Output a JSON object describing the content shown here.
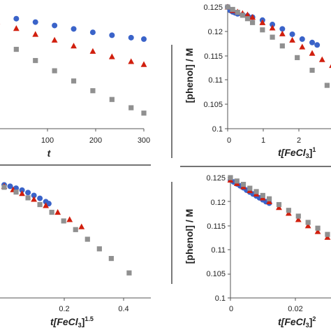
{
  "chart_data": [
    {
      "type": "scatter",
      "panel": "top-left",
      "xlabel": "t",
      "xlim": [
        0,
        300
      ],
      "ylim": [
        0.1,
        0.125
      ],
      "x_ticks": [
        "100",
        "200",
        "300"
      ],
      "series": [
        {
          "color": "#3a63c9",
          "marker": "circle",
          "x": [
            0,
            5,
            10,
            15,
            20,
            25,
            30,
            40,
            50,
            70,
            100,
            130,
            160,
            190,
            220,
            250,
            280,
            300
          ],
          "y": [
            0.125,
            0.1249,
            0.1248,
            0.1247,
            0.1246,
            0.1245,
            0.1244,
            0.1241,
            0.1238,
            0.1233,
            0.1226,
            0.1219,
            0.1212,
            0.1205,
            0.1198,
            0.1192,
            0.1187,
            0.1184
          ]
        },
        {
          "color": "#d11f0e",
          "marker": "triangle",
          "x": [
            0,
            5,
            10,
            15,
            20,
            30,
            50,
            70,
            100,
            130,
            160,
            190,
            220,
            250,
            280,
            300
          ],
          "y": [
            0.125,
            0.1248,
            0.1246,
            0.1244,
            0.1242,
            0.1238,
            0.1229,
            0.122,
            0.1206,
            0.1194,
            0.1182,
            0.117,
            0.1159,
            0.1148,
            0.1138,
            0.1132
          ]
        },
        {
          "color": "#909090",
          "marker": "square",
          "x": [
            0,
            5,
            10,
            15,
            20,
            30,
            50,
            70,
            100,
            130,
            160,
            190,
            220,
            250,
            280,
            300
          ],
          "y": [
            0.125,
            0.1245,
            0.124,
            0.1235,
            0.123,
            0.1221,
            0.1204,
            0.1187,
            0.1163,
            0.114,
            0.1119,
            0.1098,
            0.1078,
            0.106,
            0.1043,
            0.1032
          ]
        }
      ]
    },
    {
      "type": "scatter",
      "panel": "top-right",
      "ylabel": "[phenol] / M",
      "xlabel_main": "t[FeCl",
      "xlabel_sub": "3",
      "xlabel_close": "]",
      "xlabel_sup": "1",
      "xlim": [
        0,
        2.5
      ],
      "ylim": [
        0.1,
        0.125
      ],
      "y_ticks": [
        "0.125",
        "0.12",
        "0.115",
        "0.11",
        "0.105",
        "0.1"
      ],
      "x_ticks": [
        "0",
        "1",
        "2"
      ],
      "series": [
        {
          "color": "#3a63c9",
          "marker": "circle",
          "x": [
            0,
            0.05,
            0.1,
            0.15,
            0.2,
            0.3,
            0.4,
            0.5,
            0.7,
            0.9,
            1.1,
            1.3,
            1.5,
            1.7,
            1.8
          ],
          "y": [
            0.125,
            0.1243,
            0.124,
            0.1238,
            0.1236,
            0.1234,
            0.1232,
            0.1229,
            0.1223,
            0.1214,
            0.1205,
            0.1194,
            0.1184,
            0.1177,
            0.1172
          ]
        },
        {
          "color": "#d11f0e",
          "marker": "triangle",
          "x": [
            0,
            0.1,
            0.2,
            0.3,
            0.4,
            0.5,
            0.7,
            0.9,
            1.1,
            1.3,
            1.5,
            1.7,
            1.9,
            2.1
          ],
          "y": [
            0.125,
            0.1243,
            0.124,
            0.1237,
            0.1234,
            0.1229,
            0.1218,
            0.1207,
            0.1195,
            0.1182,
            0.1168,
            0.1155,
            0.1142,
            0.113
          ]
        },
        {
          "color": "#909090",
          "marker": "square",
          "x": [
            0,
            0.1,
            0.2,
            0.3,
            0.4,
            0.5,
            0.7,
            0.9,
            1.1,
            1.4,
            1.7,
            2.0,
            2.3
          ],
          "y": [
            0.125,
            0.1245,
            0.1239,
            0.1233,
            0.1226,
            0.1218,
            0.1203,
            0.1188,
            0.117,
            0.1146,
            0.112,
            0.1089,
            0.1068
          ]
        }
      ]
    },
    {
      "type": "scatter",
      "panel": "bottom-left",
      "xlabel_main": "t[FeCl",
      "xlabel_sub": "3",
      "xlabel_close": "]",
      "xlabel_sup": "1.5",
      "xlim": [
        0,
        0.5
      ],
      "ylim": [
        0.1,
        0.125
      ],
      "x_ticks": [
        "0.2",
        "0.4"
      ],
      "series": [
        {
          "color": "#3a63c9",
          "marker": "circle",
          "x": [
            0,
            0.02,
            0.04,
            0.06,
            0.08,
            0.1,
            0.12,
            0.14,
            0.15
          ],
          "y": [
            0.1235,
            0.1232,
            0.1228,
            0.1224,
            0.1219,
            0.1213,
            0.1207,
            0.12,
            0.1196
          ]
        },
        {
          "color": "#d11f0e",
          "marker": "triangle",
          "x": [
            0,
            0.03,
            0.06,
            0.1,
            0.14,
            0.18,
            0.22,
            0.26
          ],
          "y": [
            0.1232,
            0.1225,
            0.1217,
            0.1205,
            0.1192,
            0.1178,
            0.1163,
            0.1148
          ]
        },
        {
          "color": "#909090",
          "marker": "square",
          "x": [
            0,
            0.04,
            0.08,
            0.12,
            0.16,
            0.2,
            0.24,
            0.28,
            0.32,
            0.36,
            0.42
          ],
          "y": [
            0.123,
            0.122,
            0.1208,
            0.1194,
            0.1178,
            0.116,
            0.1142,
            0.1122,
            0.1102,
            0.1082,
            0.1052
          ]
        }
      ]
    },
    {
      "type": "scatter",
      "panel": "bottom-right",
      "ylabel": "[phenol] / M",
      "xlabel_main": "t[FeCl",
      "xlabel_sub": "3",
      "xlabel_close": "]",
      "xlabel_sup": "2",
      "xlim": [
        0,
        0.038
      ],
      "ylim": [
        0.1,
        0.125
      ],
      "y_ticks": [
        "0.125",
        "0.12",
        "0.115",
        "0.11",
        "0.105",
        "0.1"
      ],
      "x_ticks": [
        "0",
        "0.02"
      ],
      "series": [
        {
          "color": "#3a63c9",
          "marker": "circle",
          "x": [
            0,
            0.001,
            0.002,
            0.003,
            0.004,
            0.005,
            0.006,
            0.007,
            0.008,
            0.009,
            0.01,
            0.011,
            0.012
          ],
          "y": [
            0.1245,
            0.1241,
            0.1237,
            0.1233,
            0.1229,
            0.1224,
            0.122,
            0.1216,
            0.1212,
            0.1208,
            0.1204,
            0.12,
            0.1197
          ]
        },
        {
          "color": "#d11f0e",
          "marker": "triangle",
          "x": [
            0,
            0.002,
            0.004,
            0.006,
            0.008,
            0.01,
            0.012,
            0.015,
            0.018,
            0.021,
            0.024,
            0.027,
            0.03,
            0.033
          ],
          "y": [
            0.1245,
            0.1238,
            0.1231,
            0.1223,
            0.1216,
            0.1208,
            0.12,
            0.1188,
            0.1176,
            0.1163,
            0.115,
            0.1138,
            0.1126,
            0.1114
          ]
        },
        {
          "color": "#909090",
          "marker": "square",
          "x": [
            0,
            0.002,
            0.004,
            0.006,
            0.008,
            0.01,
            0.012,
            0.015,
            0.018,
            0.021,
            0.024,
            0.027,
            0.03,
            0.034,
            0.037
          ],
          "y": [
            0.125,
            0.1243,
            0.1236,
            0.1228,
            0.1221,
            0.1213,
            0.1206,
            0.1194,
            0.1182,
            0.117,
            0.1157,
            0.1145,
            0.1132,
            0.1114,
            0.107
          ]
        }
      ]
    }
  ]
}
